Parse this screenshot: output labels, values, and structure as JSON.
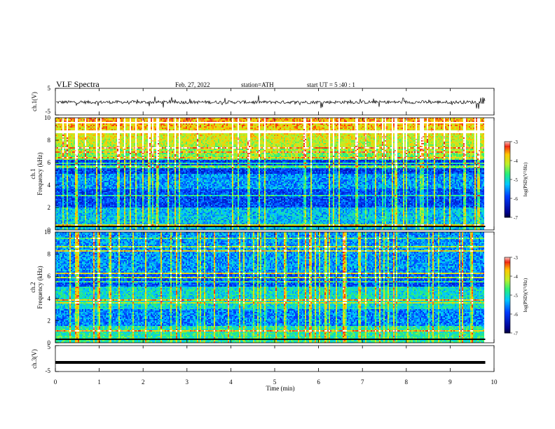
{
  "header": {
    "title": "VLF  Spectra",
    "date": "Feb. 27, 2022",
    "station": "station=ATH",
    "start": "start  UT  =    5  :40 : 1"
  },
  "chart_data": [
    {
      "type": "line",
      "panel": "ch1-waveform",
      "ylabel": "ch.1(V)",
      "ylim": [
        -5,
        5
      ],
      "yticks": [
        "5",
        "-5"
      ],
      "xlim": [
        0,
        10
      ],
      "approx_level": -0.2
    },
    {
      "type": "heatmap",
      "panel": "ch1-spectrogram",
      "ylabel": "ch.1\nFrequency  (kHz)",
      "ylim": [
        0,
        10
      ],
      "yticks": [
        "0",
        "2",
        "4",
        "6",
        "8",
        "10"
      ],
      "xlim": [
        0,
        10
      ],
      "data_end_min": 9.8,
      "colorbar": {
        "label": "log(PSD)(V²/Hz)",
        "ticks": [
          "-3",
          "-4",
          "-5",
          "-6",
          "-7"
        ],
        "range": [
          -7,
          -3
        ]
      }
    },
    {
      "type": "heatmap",
      "panel": "ch2-spectrogram",
      "ylabel": "ch.2\nFrequency  (kHz)",
      "ylim": [
        0,
        10
      ],
      "yticks": [
        "0",
        "2",
        "4",
        "6",
        "8",
        "10"
      ],
      "xlim": [
        0,
        10
      ],
      "data_end_min": 9.8,
      "colorbar": {
        "label": "log(PSD)(V²/Hz)",
        "ticks": [
          "-3",
          "-4",
          "-5",
          "-6",
          "-7"
        ],
        "range": [
          -7,
          -3
        ]
      }
    },
    {
      "type": "line",
      "panel": "ch3-waveform",
      "ylabel": "ch.3(V)",
      "ylim": [
        -5,
        5
      ],
      "yticks": [
        "5",
        "-5"
      ],
      "xlim": [
        0,
        10
      ],
      "approx_level": -1.5
    }
  ],
  "xaxis": {
    "label": "Time  (min)",
    "ticks": [
      "0",
      "1",
      "2",
      "3",
      "4",
      "5",
      "6",
      "7",
      "8",
      "9",
      "10"
    ]
  },
  "colors": {
    "axis": "#000000",
    "background": "#ffffff"
  }
}
